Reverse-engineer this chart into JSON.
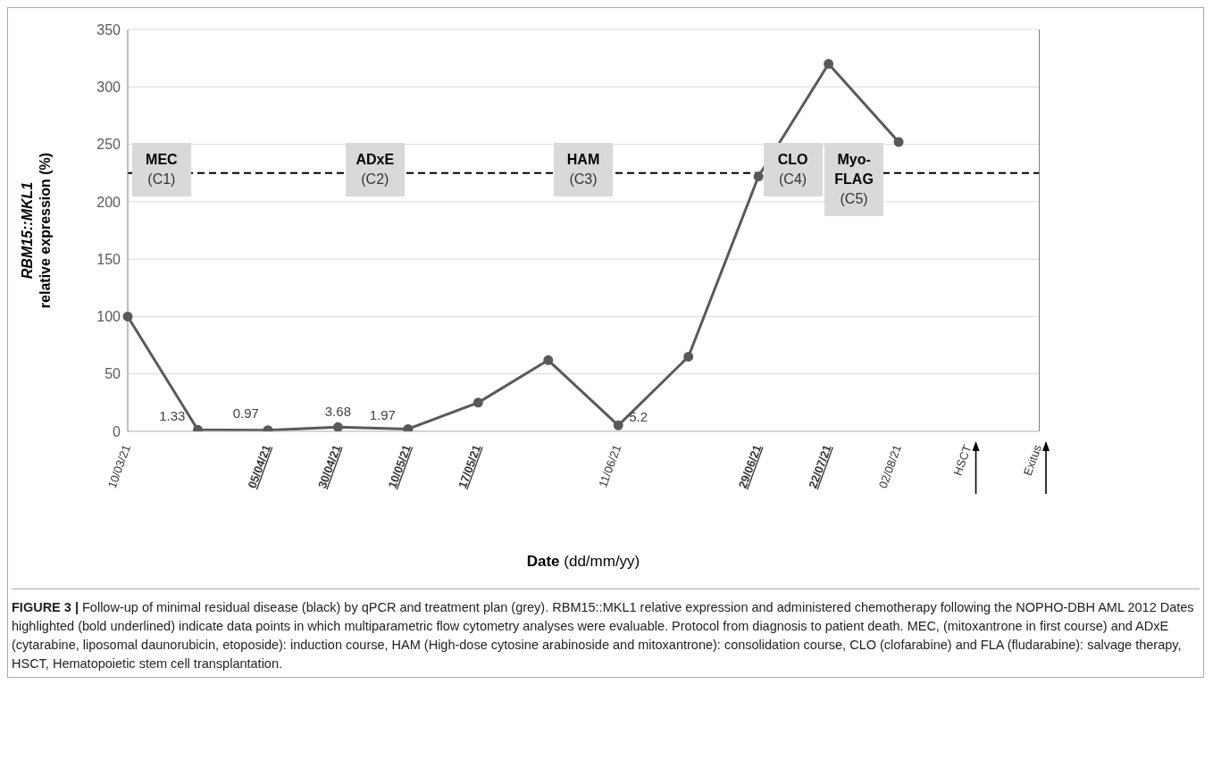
{
  "chart_data": {
    "type": "line",
    "xlabel": "Date (dd/mm/yy)",
    "ylabel": "RBM15::MKL1 relative expression (%)",
    "categories": [
      "10/03/21",
      null,
      "05/04/21",
      "30/04/21",
      "10/05/21",
      "17/05/21",
      null,
      "11/06/21",
      null,
      "29/06/21",
      "22/07/21",
      "02/08/21",
      "HSCT",
      "Exitus"
    ],
    "series": [
      {
        "color": "#595959",
        "values": [
          100,
          1.33,
          0.97,
          3.68,
          1.97,
          25,
          62,
          5.2,
          65,
          222,
          320,
          252,
          null,
          null
        ],
        "value_labels": [
          null,
          "1.33",
          "0.97",
          "3.68",
          "1.97",
          null,
          null,
          "5.2",
          null,
          null,
          null,
          null,
          null,
          null
        ]
      }
    ],
    "ylim": [
      0,
      350
    ],
    "yticks": [
      0,
      50,
      100,
      150,
      200,
      250,
      300,
      350
    ],
    "grid": "y",
    "marker": "circle",
    "line_style": "solid",
    "ref_lines": [
      {
        "axis": "y",
        "value": 225,
        "color": "#000000",
        "line_style": "dashed"
      }
    ],
    "annotations": [
      "MEC\n(C1)",
      "ADxE\n(C2)",
      "HAM\n(C3)",
      "CLO\n(C4)",
      "Myo-\nFLAG\n(C5)",
      "FIGURE 3 | Follow-up of minimal residual disease (black) by qPCR and treatment plan (grey). RBM15::MKL1 relative expression and administered chemotherapy following the NOPHO-DBH AML 2012 Dates highlighted (bold underlined) indicate data points in which multiparametric flow cytometry analyses were evaluable. Protocol from diagnosis to patient death. MEC, (mitoxantrone in first course) and ADxE (cytarabine, liposomal daunorubicin, etoposide): induction course, HAM (High-dose cytosine arabinoside and mitoxantrone): consolidation course, CLO (clofarabine) and FLA (fludarabine): salvage therapy, HSCT, Hematopoietic stem cell transplantation."
    ]
  }
}
